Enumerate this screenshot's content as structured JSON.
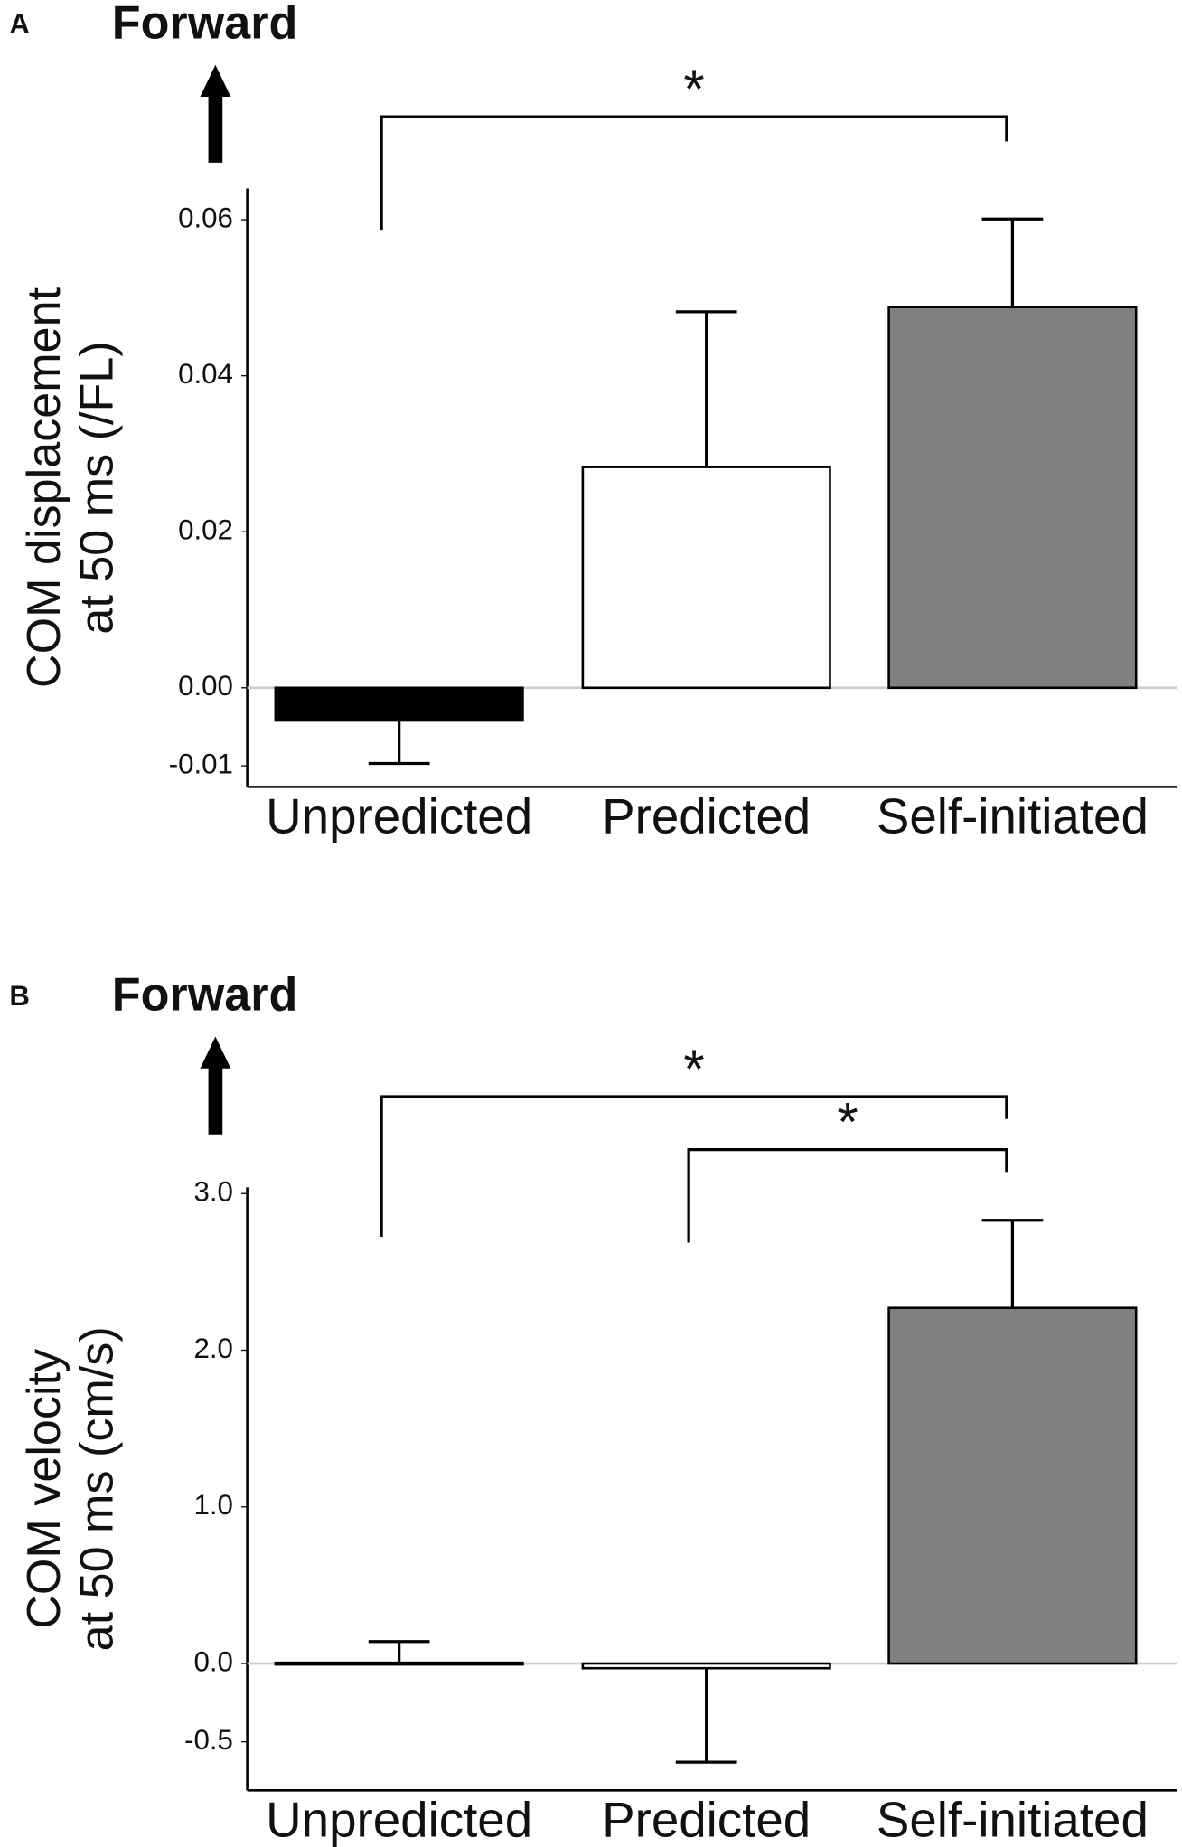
{
  "chart_data": [
    {
      "type": "bar",
      "panel": "A",
      "direction_label": "Forward",
      "ylabel": [
        "COM displacement",
        "at 50 ms (/FL)"
      ],
      "categories": [
        "Unpredicted",
        "Predicted",
        "Self-initiated"
      ],
      "values": [
        -0.0042,
        0.0283,
        0.0488
      ],
      "errors": [
        0.0055,
        0.0199,
        0.0113
      ],
      "colors": [
        "#000000",
        "#ffffff",
        "#808080"
      ],
      "ylim": [
        -0.0127,
        0.064
      ],
      "yticks": [
        {
          "value": 0.06,
          "label": "0.06"
        },
        {
          "value": 0.04,
          "label": "0.04"
        },
        {
          "value": 0.02,
          "label": "0.02"
        },
        {
          "value": 0,
          "label": "0.00"
        },
        -0.01
      ],
      "significance": [
        {
          "from": 0,
          "to": 2,
          "label": "*"
        }
      ]
    },
    {
      "type": "bar",
      "panel": "B",
      "direction_label": "Forward",
      "ylabel": [
        "COM velocity",
        "at 50 ms (cm/s)"
      ],
      "categories": [
        "Unpredicted",
        "Predicted",
        "Self-initiated"
      ],
      "values": [
        0.005,
        -0.03,
        2.27
      ],
      "errors": [
        0.135,
        0.6,
        0.56
      ],
      "colors": [
        "#000000",
        "#ffffff",
        "#808080"
      ],
      "ylim": [
        -0.81,
        3.04
      ],
      "yticks": [
        {
          "value": 3,
          "label": "3.0"
        },
        {
          "value": 2,
          "label": "2.0"
        },
        {
          "value": 1,
          "label": "1.0"
        },
        {
          "value": 0,
          "label": "0.0"
        },
        -0.5
      ],
      "significance": [
        {
          "from": 0,
          "to": 2,
          "label": "*"
        },
        {
          "from": 1,
          "to": 2,
          "label": "*"
        }
      ]
    }
  ]
}
